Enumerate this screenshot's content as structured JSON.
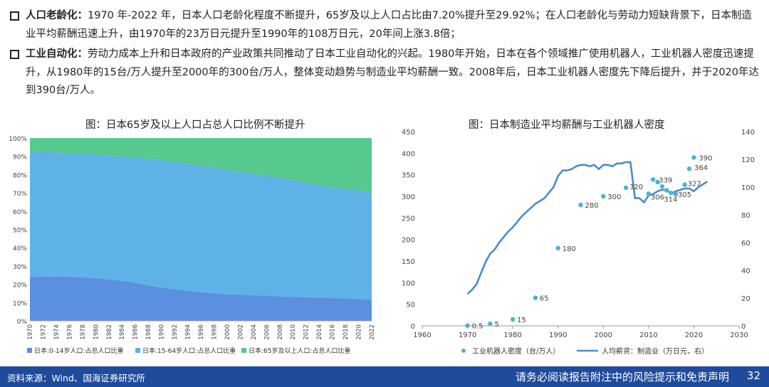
{
  "bullets": [
    {
      "head": "人口老龄化：",
      "text": "1970 年-2022 年，日本人口老龄化程度不断提升，65岁及以上人口占比由7.20%提升至29.92%；在人口老龄化与劳动力短缺背景下，日本制造业平均薪酬迅速上升，由1970年的23万日元提升至1990年的108万日元，20年间上涨3.8倍；"
    },
    {
      "head": "工业自动化：",
      "text": "劳动力成本上升和日本政府的产业政策共同推动了日本工业自动化的兴起。1980年开始，日本在各个领域推广使用机器人，工业机器人密度迅速提升，从1980年的15台/万人提升至2000年的300台/万人，整体变动趋势与制造业平均薪酬一致。2008年后，日本工业机器人密度先下降后提升，并于2020年达到390台/万人。"
    }
  ],
  "footer": {
    "source": "资料来源：Wind、国海证券研究所",
    "disclaimer": "请务必阅读报告附注中的风险提示和免责声明",
    "page": "32"
  },
  "chart_data": [
    {
      "type": "area",
      "title": "图：日本65岁及以上人口占总人口比例不断提升",
      "stacked": "percent",
      "ylim": [
        0,
        100
      ],
      "yticks": [
        "0%",
        "10%",
        "20%",
        "30%",
        "40%",
        "50%",
        "60%",
        "70%",
        "80%",
        "90%",
        "100%"
      ],
      "x_tick_labels": [
        "1970",
        "1972",
        "1974",
        "1976",
        "1978",
        "1980",
        "1982",
        "1984",
        "1986",
        "1988",
        "1990",
        "1992",
        "1994",
        "1996",
        "1998",
        "2000",
        "2002",
        "2004",
        "2006",
        "2008",
        "2010",
        "2012",
        "2014",
        "2016",
        "2018",
        "2020",
        "2022"
      ],
      "x": [
        1970,
        1975,
        1980,
        1985,
        1990,
        1995,
        2000,
        2005,
        2010,
        2015,
        2020,
        2022
      ],
      "legend_position": "bottom",
      "series": [
        {
          "name": "日本:0-14岁人口:占总人口比重",
          "color": "#5b8fe0",
          "values": [
            24.0,
            24.3,
            23.5,
            21.5,
            18.2,
            16.0,
            14.6,
            13.8,
            13.2,
            12.6,
            12.0,
            11.6
          ]
        },
        {
          "name": "日本:15-64岁人口:占总人口比重",
          "color": "#5fb2e6",
          "values": [
            68.8,
            67.6,
            67.4,
            68.2,
            69.7,
            69.4,
            67.9,
            66.1,
            63.8,
            60.7,
            59.5,
            58.5
          ]
        },
        {
          "name": "日本:65岁及以上人口:占总人口比重",
          "color": "#56c98f",
          "values": [
            7.2,
            8.1,
            9.1,
            10.3,
            12.1,
            14.6,
            17.5,
            20.1,
            23.0,
            26.7,
            28.5,
            29.9
          ]
        }
      ]
    },
    {
      "type": "scatter+line",
      "title": "图：日本制造业平均薪酬与工业机器人密度",
      "xlim": [
        1960,
        2030
      ],
      "xticks": [
        "1960",
        "1970",
        "1980",
        "1990",
        "2000",
        "2010",
        "2020",
        "2030"
      ],
      "ylim_left": [
        0,
        450
      ],
      "yticks_left": [
        "0",
        "50",
        "100",
        "150",
        "200",
        "250",
        "300",
        "350",
        "400",
        "450"
      ],
      "ylim_right": [
        0,
        140
      ],
      "yticks_right": [
        "0",
        "20",
        "40",
        "60",
        "80",
        "100",
        "120",
        "140"
      ],
      "legend_position": "bottom",
      "scatter": {
        "name": "工业机器人密度（台/万人）",
        "color": "#4fb0d6",
        "points": [
          {
            "x": 1970,
            "y": 0.5,
            "label": "0.5"
          },
          {
            "x": 1975,
            "y": 5,
            "label": "5"
          },
          {
            "x": 1980,
            "y": 15,
            "label": "15"
          },
          {
            "x": 1985,
            "y": 65,
            "label": "65"
          },
          {
            "x": 1990,
            "y": 180,
            "label": "180"
          },
          {
            "x": 1995,
            "y": 280,
            "label": "280"
          },
          {
            "x": 2000,
            "y": 300,
            "label": "300"
          },
          {
            "x": 2005,
            "y": 320,
            "label": "320"
          },
          {
            "x": 2010,
            "y": 306,
            "label": "306"
          },
          {
            "x": 2011,
            "y": 339,
            "label": "339"
          },
          {
            "x": 2012,
            "y": 333,
            "label": ""
          },
          {
            "x": 2013,
            "y": 323,
            "label": ""
          },
          {
            "x": 2014,
            "y": 314,
            "label": "314"
          },
          {
            "x": 2015,
            "y": 308,
            "label": ""
          },
          {
            "x": 2016,
            "y": 305,
            "label": "305"
          },
          {
            "x": 2018,
            "y": 327,
            "label": "327"
          },
          {
            "x": 2019,
            "y": 364,
            "label": "364"
          },
          {
            "x": 2020,
            "y": 390,
            "label": "390"
          }
        ]
      },
      "line": {
        "name": "人均薪资：制造业（万日元，右）",
        "color": "#4a8bd0",
        "axis": "right",
        "x": [
          1970,
          1971,
          1972,
          1973,
          1974,
          1975,
          1976,
          1977,
          1978,
          1979,
          1980,
          1981,
          1982,
          1983,
          1984,
          1985,
          1986,
          1987,
          1988,
          1989,
          1990,
          1991,
          1992,
          1993,
          1994,
          1995,
          1996,
          1997,
          1998,
          1999,
          2000,
          2001,
          2002,
          2003,
          2004,
          2005,
          2006,
          2007,
          2008,
          2009,
          2010,
          2011,
          2012,
          2013,
          2014,
          2015,
          2016,
          2017,
          2018,
          2019,
          2020,
          2021,
          2022,
          2023
        ],
        "y": [
          23,
          26,
          30,
          38,
          46,
          52,
          55,
          60,
          64,
          68,
          71,
          75,
          79,
          82,
          85,
          88,
          90,
          92,
          96,
          100,
          108,
          112,
          112,
          113,
          115,
          116,
          116,
          115,
          116,
          113,
          116,
          116,
          115,
          117,
          117,
          118,
          118,
          92,
          92,
          89,
          94,
          95,
          97,
          98,
          98,
          95,
          97,
          98,
          99,
          99,
          97,
          100,
          102,
          104
        ]
      }
    }
  ]
}
